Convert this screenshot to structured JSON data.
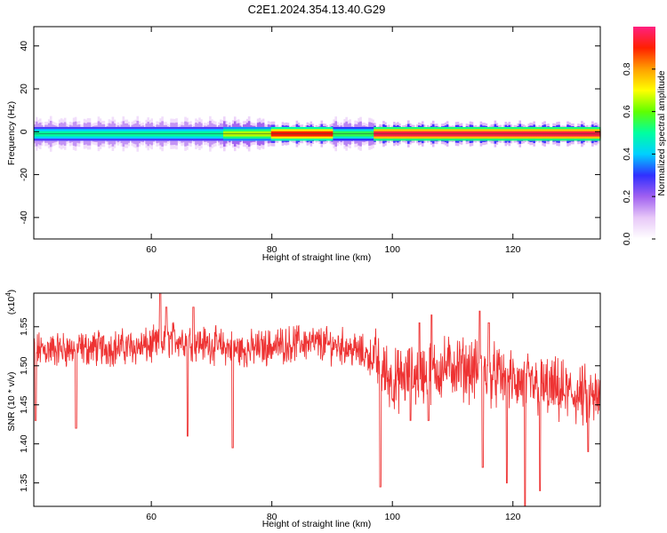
{
  "title": "C2E1.2024.354.13.40.G29",
  "chart_data": [
    {
      "type": "heatmap",
      "xlabel": "Height of straight line (km)",
      "ylabel": "Frequency (Hz)",
      "xlim": [
        40.5,
        134.5
      ],
      "ylim": [
        -50,
        49
      ],
      "xticks": [
        60,
        80,
        100,
        120
      ],
      "yticks": [
        40,
        20,
        0,
        -20,
        -40
      ],
      "colorbar": {
        "label": "Normalized spectral amplitude",
        "range": [
          0,
          1
        ],
        "ticks": [
          "0.0",
          "0.2",
          "0.4",
          "0.6",
          "0.8"
        ],
        "colors": [
          "#ffffff",
          "#e8c8f8",
          "#a060f0",
          "#3030ff",
          "#00d0ff",
          "#00ffa0",
          "#60ff00",
          "#ffff00",
          "#ffa000",
          "#ff2000",
          "#ff2080"
        ]
      },
      "band": {
        "center_freq_hz": -1,
        "segments": [
          {
            "from_km": 40.5,
            "to_km": 72,
            "peak_amplitude": 0.5
          },
          {
            "from_km": 72,
            "to_km": 80,
            "peak_amplitude": 0.65
          },
          {
            "from_km": 80,
            "to_km": 90,
            "peak_amplitude": 0.9
          },
          {
            "from_km": 90,
            "to_km": 97,
            "peak_amplitude": 0.55
          },
          {
            "from_km": 97,
            "to_km": 134.5,
            "peak_amplitude": 0.95
          }
        ]
      }
    },
    {
      "type": "line",
      "xlabel": "Height of straight line (km)",
      "ylabel": "SNR (10 * v/v)",
      "yscale_label": "(x10",
      "yscale_exp": "4",
      "xlim": [
        40.5,
        134.5
      ],
      "ylim": [
        1.32,
        1.593
      ],
      "xticks": [
        60,
        80,
        100,
        120
      ],
      "yticks": [
        1.35,
        1.4,
        1.45,
        1.5,
        1.55
      ],
      "series": [
        {
          "color": "#ee3333",
          "trend": [
            [
              40.5,
              1.52
            ],
            [
              60,
              1.525
            ],
            [
              64,
              1.535
            ],
            [
              75,
              1.52
            ],
            [
              85,
              1.53
            ],
            [
              92,
              1.525
            ],
            [
              97,
              1.51
            ],
            [
              100,
              1.48
            ],
            [
              105,
              1.49
            ],
            [
              110,
              1.5
            ],
            [
              116,
              1.49
            ],
            [
              120,
              1.48
            ],
            [
              126,
              1.47
            ],
            [
              134.5,
              1.455
            ]
          ],
          "dips": [
            [
              40.8,
              1.43
            ],
            [
              47.5,
              1.42
            ],
            [
              73.5,
              1.395
            ],
            [
              66,
              1.41
            ],
            [
              98,
              1.345
            ],
            [
              103,
              1.43
            ],
            [
              106,
              1.43
            ],
            [
              115,
              1.37
            ],
            [
              119,
              1.35
            ],
            [
              122,
              1.32
            ],
            [
              124.5,
              1.34
            ],
            [
              132.5,
              1.39
            ]
          ],
          "peaks": [
            [
              61.5,
              1.593
            ],
            [
              62.5,
              1.575
            ],
            [
              67,
              1.575
            ],
            [
              104.5,
              1.555
            ],
            [
              106.5,
              1.565
            ],
            [
              114.5,
              1.57
            ],
            [
              116,
              1.555
            ]
          ]
        }
      ]
    }
  ]
}
